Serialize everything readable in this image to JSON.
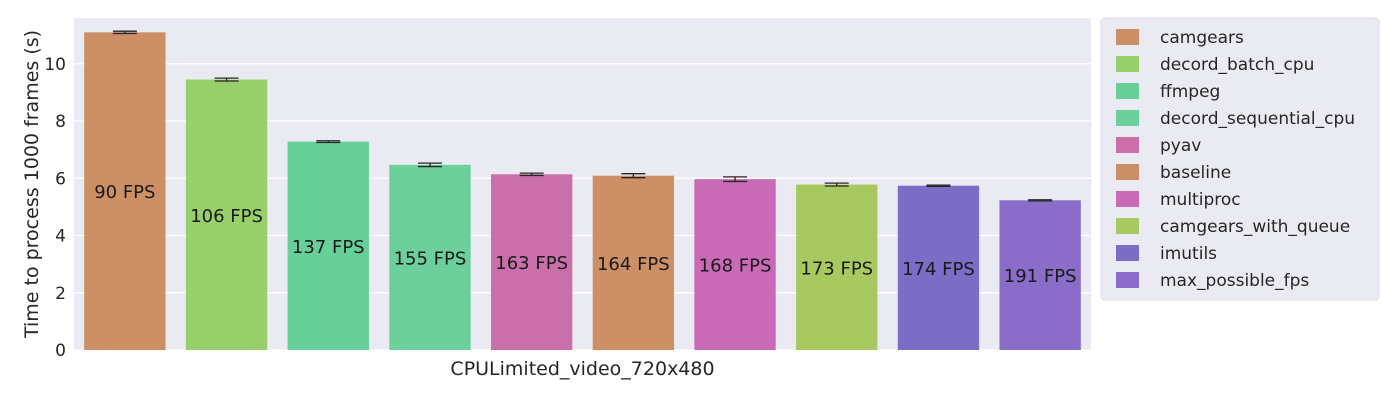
{
  "chart_data": {
    "type": "bar",
    "xlabel": "CPULimited_video_720x480",
    "ylabel": "Time to process 1000 frames (s)",
    "ylim": [
      0,
      11.6
    ],
    "yticks": [
      "0",
      "2",
      "4",
      "6",
      "8",
      "10"
    ],
    "grid": true,
    "legend_position": "right",
    "series": [
      {
        "name": "camgears",
        "value": 11.1,
        "error": 0.04,
        "label": "90 FPS",
        "color": "#cd9066"
      },
      {
        "name": "decord_batch_cpu",
        "value": 9.45,
        "error": 0.05,
        "label": "106 FPS",
        "color": "#98cf6a"
      },
      {
        "name": "ffmpeg",
        "value": 7.28,
        "error": 0.03,
        "label": "137 FPS",
        "color": "#66cf9a"
      },
      {
        "name": "decord_sequential_cpu",
        "value": 6.47,
        "error": 0.06,
        "label": "155 FPS",
        "color": "#6dd09c"
      },
      {
        "name": "pyav",
        "value": 6.14,
        "error": 0.04,
        "label": "163 FPS",
        "color": "#cb6fab"
      },
      {
        "name": "baseline",
        "value": 6.09,
        "error": 0.07,
        "label": "164 FPS",
        "color": "#cd9066"
      },
      {
        "name": "multiproc",
        "value": 5.97,
        "error": 0.08,
        "label": "168 FPS",
        "color": "#c96ab7"
      },
      {
        "name": "camgears_with_queue",
        "value": 5.78,
        "error": 0.05,
        "label": "173 FPS",
        "color": "#a7c960"
      },
      {
        "name": "imutils",
        "value": 5.74,
        "error": 0.02,
        "label": "174 FPS",
        "color": "#7b6cc6"
      },
      {
        "name": "max_possible_fps",
        "value": 5.23,
        "error": 0.02,
        "label": "191 FPS",
        "color": "#8a6cc9"
      }
    ]
  },
  "colors": {
    "plot_background": "#eaeaf2",
    "grid": "#ffffff",
    "error_bar": "#262626"
  }
}
